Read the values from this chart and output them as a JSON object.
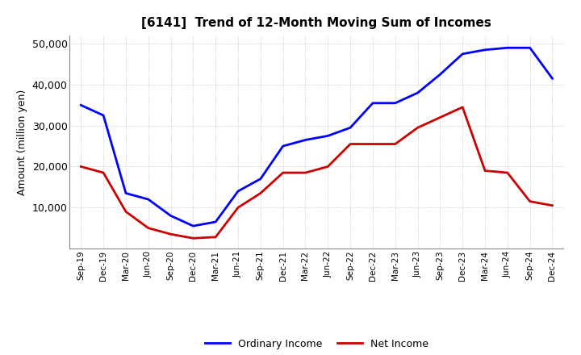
{
  "title": "[6141]  Trend of 12-Month Moving Sum of Incomes",
  "ylabel": "Amount (million yen)",
  "ylim": [
    0,
    52000
  ],
  "yticks": [
    10000,
    20000,
    30000,
    40000,
    50000
  ],
  "background_color": "#ffffff",
  "grid_color": "#b0b0b0",
  "labels": [
    "Sep-19",
    "Dec-19",
    "Mar-20",
    "Jun-20",
    "Sep-20",
    "Dec-20",
    "Mar-21",
    "Jun-21",
    "Sep-21",
    "Dec-21",
    "Mar-22",
    "Jun-22",
    "Sep-22",
    "Dec-22",
    "Mar-23",
    "Jun-23",
    "Sep-23",
    "Dec-23",
    "Mar-24",
    "Jun-24",
    "Sep-24",
    "Dec-24"
  ],
  "ordinary_income": [
    35000,
    32500,
    13500,
    12000,
    8000,
    5500,
    6500,
    14000,
    17000,
    25000,
    26500,
    27500,
    29500,
    35500,
    35500,
    38000,
    42500,
    47500,
    48500,
    49000,
    49000,
    41500
  ],
  "net_income": [
    20000,
    18500,
    9000,
    5000,
    3500,
    2500,
    2800,
    10000,
    13500,
    18500,
    18500,
    20000,
    25500,
    25500,
    25500,
    29500,
    32000,
    34500,
    19000,
    18500,
    11500,
    10500
  ],
  "ordinary_color": "#0000ff",
  "net_color": "#cc0000",
  "line_width": 2.0,
  "legend_labels": [
    "Ordinary Income",
    "Net Income"
  ]
}
